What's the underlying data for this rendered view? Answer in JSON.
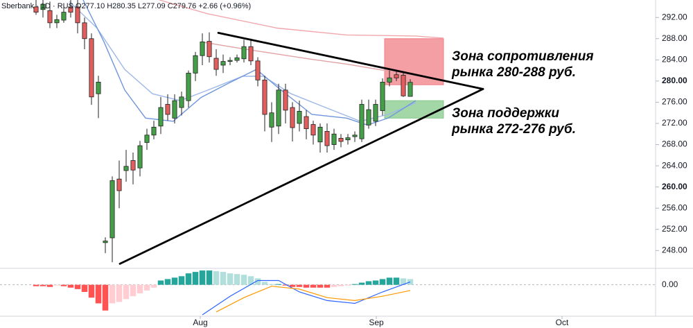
{
  "chart_data": {
    "type": "candlestick",
    "title": "Sberbank · 1D · RUS  O277.10 H280.35 L277.09 C279.76 +2.66 (+0.96%)",
    "x": [
      0,
      1,
      2,
      3,
      4,
      5,
      6,
      7,
      8,
      9,
      10,
      11,
      12,
      13,
      14,
      15,
      16,
      17,
      18,
      19,
      20,
      21,
      22,
      23,
      24,
      25,
      26,
      27,
      28,
      29,
      30,
      31,
      32,
      33,
      34,
      35,
      36,
      37,
      38,
      39,
      40,
      41,
      42,
      43,
      44,
      45,
      46,
      47,
      48,
      49,
      50,
      51,
      52,
      53,
      54
    ],
    "open": [
      294,
      293.5,
      293.3,
      291,
      291.5,
      294,
      294,
      291,
      288,
      277.6,
      249.5,
      250.4,
      261.5,
      263.1,
      265,
      263.6,
      268.4,
      269.8,
      271.5,
      275.6,
      273,
      275,
      276.3,
      281.5,
      284.8,
      287.5,
      284.3,
      283,
      283.7,
      283.9,
      284.2,
      286.5,
      283.8,
      280.2,
      271.3,
      271.5,
      278.3,
      275,
      272,
      273.3,
      271.8,
      268.5,
      270.5,
      268,
      269.2,
      268.9,
      269.5,
      269.1,
      271.7,
      272.4,
      274.4,
      279.8,
      281.2,
      281.1,
      277.1
    ],
    "high": [
      296,
      295.5,
      295,
      292.5,
      294,
      296,
      296,
      292,
      289,
      281,
      250.5,
      262,
      265,
      267,
      266.5,
      268.7,
      271,
      272.5,
      277,
      277.5,
      277.5,
      278,
      282,
      285.5,
      289,
      289.2,
      286,
      285,
      284.5,
      285,
      287.8,
      288,
      284.5,
      281,
      276,
      279.5,
      279.5,
      276,
      276.3,
      274.5,
      272.5,
      272,
      272,
      271,
      270,
      270,
      270.5,
      276.5,
      276.5,
      276.5,
      280.5,
      282,
      282,
      281.5,
      280.35
    ],
    "low": [
      292.5,
      292,
      290,
      290,
      291,
      292,
      289,
      286,
      275.5,
      273,
      247.5,
      245.8,
      256,
      261,
      260.5,
      262,
      267,
      269,
      270,
      272.5,
      272,
      273.5,
      275,
      280,
      283,
      283.5,
      281,
      281.5,
      283,
      283.5,
      283.5,
      283,
      279,
      270.5,
      268.5,
      270,
      272,
      268.6,
      270.5,
      269,
      268,
      266.5,
      266.5,
      267,
      267.5,
      268,
      268.5,
      268.5,
      271,
      271.5,
      273.5,
      279,
      280,
      277,
      277.09
    ],
    "close": [
      293,
      294.5,
      291,
      291.6,
      293,
      293,
      291,
      288,
      277,
      279.8,
      249.8,
      261.2,
      259.3,
      263.9,
      263.2,
      267.8,
      269.8,
      271.3,
      275,
      273.7,
      276.3,
      277,
      281.5,
      284.8,
      287.4,
      284.6,
      282.2,
      283.7,
      283.9,
      284.4,
      286.5,
      283.8,
      280.2,
      273.7,
      274,
      278.3,
      274.5,
      271.2,
      274.3,
      271,
      269.8,
      271.3,
      267.8,
      270,
      268.6,
      269.3,
      269.8,
      275.6,
      274.6,
      275.6,
      279.8,
      280.6,
      280.6,
      277.2,
      279.76
    ],
    "up_color": "#43a047",
    "down_color": "#e35d5d",
    "xlim": [
      -5.2,
      89.4
    ],
    "ylim": [
      244.9,
      295.3
    ],
    "xticks": [
      {
        "value": 23.7,
        "label": "Aug"
      },
      {
        "value": 49.1,
        "label": "Sep"
      },
      {
        "value": 75.9,
        "label": "Oct"
      }
    ],
    "yticks": [
      {
        "value": 248,
        "label": "248.00"
      },
      {
        "value": 252,
        "label": "252.00"
      },
      {
        "value": 256,
        "label": "256.00"
      },
      {
        "value": 260,
        "label": "260.00"
      },
      {
        "value": 264,
        "label": "264.00"
      },
      {
        "value": 268,
        "label": "268.00"
      },
      {
        "value": 272,
        "label": "272.00"
      },
      {
        "value": 276,
        "label": "276.00"
      },
      {
        "value": 280,
        "label": "280.00"
      },
      {
        "value": 284,
        "label": "284.00"
      },
      {
        "value": 288,
        "label": "288.00"
      },
      {
        "value": 292,
        "label": "292.00"
      }
    ],
    "overlays": [
      {
        "color": "#f2a7ad",
        "x": [
          17.8,
          24.8,
          34.8,
          44.8,
          54.8,
          58.8
        ],
        "values": [
          295.3,
          292.7,
          290,
          288.7,
          288.5,
          288.1
        ]
      },
      {
        "color": "#e3a2a6",
        "x": [
          23.8,
          29.8,
          34.8,
          39.8,
          44.8,
          50.8,
          54.8
        ],
        "values": [
          287.4,
          286.1,
          285.1,
          284.1,
          283.2,
          281.9,
          280.9
        ]
      },
      {
        "color": "#9db8e8",
        "x": [
          4.8,
          8.8,
          12.8,
          16.8,
          20.8,
          24.8,
          29.8,
          32.8,
          36.8,
          41.8,
          46.8,
          50.8,
          54.8
        ],
        "values": [
          295,
          290,
          282.2,
          277.6,
          276.3,
          278.3,
          280.9,
          280.9,
          277.6,
          275,
          272.4,
          273.7,
          275.9
        ]
      },
      {
        "color": "#6f95dc",
        "x": [
          6.8,
          9.8,
          12.8,
          15.8,
          19.8,
          23.8,
          27.8,
          31.8,
          34.8,
          39.8,
          44.8,
          47.8,
          50.8,
          54.8
        ],
        "values": [
          295.3,
          287.4,
          278.3,
          273,
          272.4,
          276.9,
          279.6,
          282.2,
          278.9,
          273.7,
          273,
          271.7,
          273,
          276.3
        ]
      }
    ],
    "zones": [
      {
        "color": "#f07f86",
        "x": [
          50.3,
          58.8
        ],
        "y": [
          288,
          279.3
        ]
      },
      {
        "color": "#86c98a",
        "x": [
          50.3,
          58.8
        ],
        "y": [
          276.3,
          273
        ]
      }
    ],
    "trendlines": [
      {
        "color": "#000000",
        "x": [
          26.3,
          64.5
        ],
        "y": [
          289.1,
          278.5
        ]
      },
      {
        "color": "#000000",
        "x": [
          12.1,
          64.5
        ],
        "y": [
          245.5,
          278.5
        ]
      }
    ],
    "annotations": [
      {
        "lines": [
          "Зона сопротивления",
          "рынка 280-288 руб."
        ]
      },
      {
        "lines": [
          "Зона поддержки",
          "рынка 272-276 руб."
        ]
      }
    ],
    "macd": {
      "ylim": [
        -2.15,
        1.1
      ],
      "yticks": [
        {
          "value": 0,
          "label": "0.00"
        }
      ],
      "histogram": [
        -0.1,
        -0.1,
        -0.15,
        -0.05,
        -0.1,
        -0.2,
        -0.3,
        -0.5,
        -0.9,
        -1.3,
        -1.8,
        -1.3,
        -1.2,
        -1,
        -0.8,
        -0.6,
        -0.4,
        -0.2,
        0.3,
        0.4,
        0.5,
        0.6,
        0.8,
        0.9,
        1,
        1,
        0.95,
        0.9,
        0.8,
        0.75,
        0.7,
        0.6,
        0.45,
        0.2,
        0.05,
        0.05,
        -0.05,
        -0.15,
        -0.15,
        -0.2,
        -0.2,
        -0.2,
        -0.2,
        -0.15,
        -0.1,
        -0.05,
        0.05,
        0.15,
        0.25,
        0.3,
        0.4,
        0.5,
        0.5,
        0.45,
        0.4
      ],
      "hist_colors": {
        "rising_above": "#26a69a",
        "falling_above": "#b2dfdb",
        "falling_below": "#ff5252",
        "rising_below": "#ffcdd2"
      },
      "lines": [
        {
          "color": "#2962ff",
          "x": [
            24,
            28,
            32,
            35,
            38,
            42,
            46,
            50,
            54
          ],
          "values": [
            -2.1,
            -0.8,
            0.3,
            0.3,
            -0.5,
            -1.1,
            -1.3,
            -0.5,
            0.2
          ]
        },
        {
          "color": "#ff9800",
          "x": [
            26,
            30,
            34,
            38,
            42,
            46,
            50,
            54
          ],
          "values": [
            -1.9,
            -0.9,
            -0.1,
            -0.3,
            -0.9,
            -1.1,
            -0.8,
            -0.4
          ]
        }
      ]
    }
  }
}
